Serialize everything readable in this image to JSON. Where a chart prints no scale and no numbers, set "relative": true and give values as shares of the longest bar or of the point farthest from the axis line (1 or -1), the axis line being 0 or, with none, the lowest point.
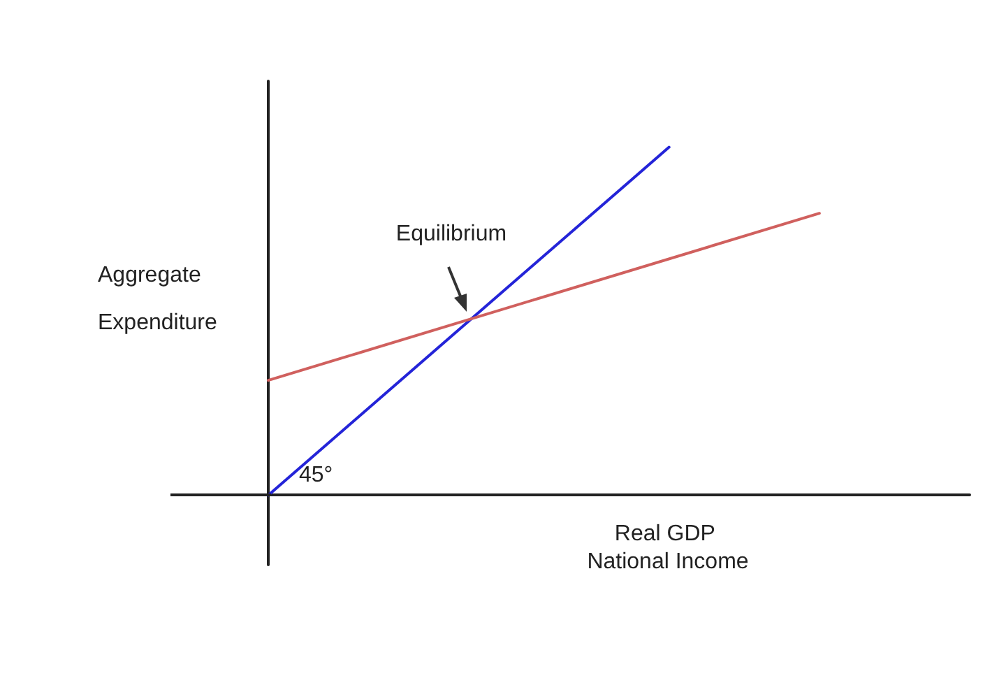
{
  "chart_data": {
    "type": "line",
    "relative": true,
    "xlabel": "Real GDP National Income",
    "ylabel": "Aggregate Expenditure",
    "marker": "none",
    "line_style": "solid",
    "categories": [
      null,
      null,
      null,
      null,
      null,
      null,
      null,
      null,
      null,
      null,
      null,
      null,
      null,
      null,
      null
    ],
    "series": [
      {
        "color": "#2424d8",
        "values": [
          0,
          null,
          null,
          null,
          null,
          null,
          null,
          null,
          1,
          null,
          null,
          null,
          null,
          null,
          null
        ]
      },
      {
        "color": "#d0605e",
        "values": [
          0.33,
          null,
          null,
          null,
          null,
          null,
          null,
          null,
          null,
          null,
          null,
          0.81,
          null,
          null,
          null
        ]
      }
    ],
    "annotations": [
      "Equilibrium",
      "45°"
    ]
  }
}
